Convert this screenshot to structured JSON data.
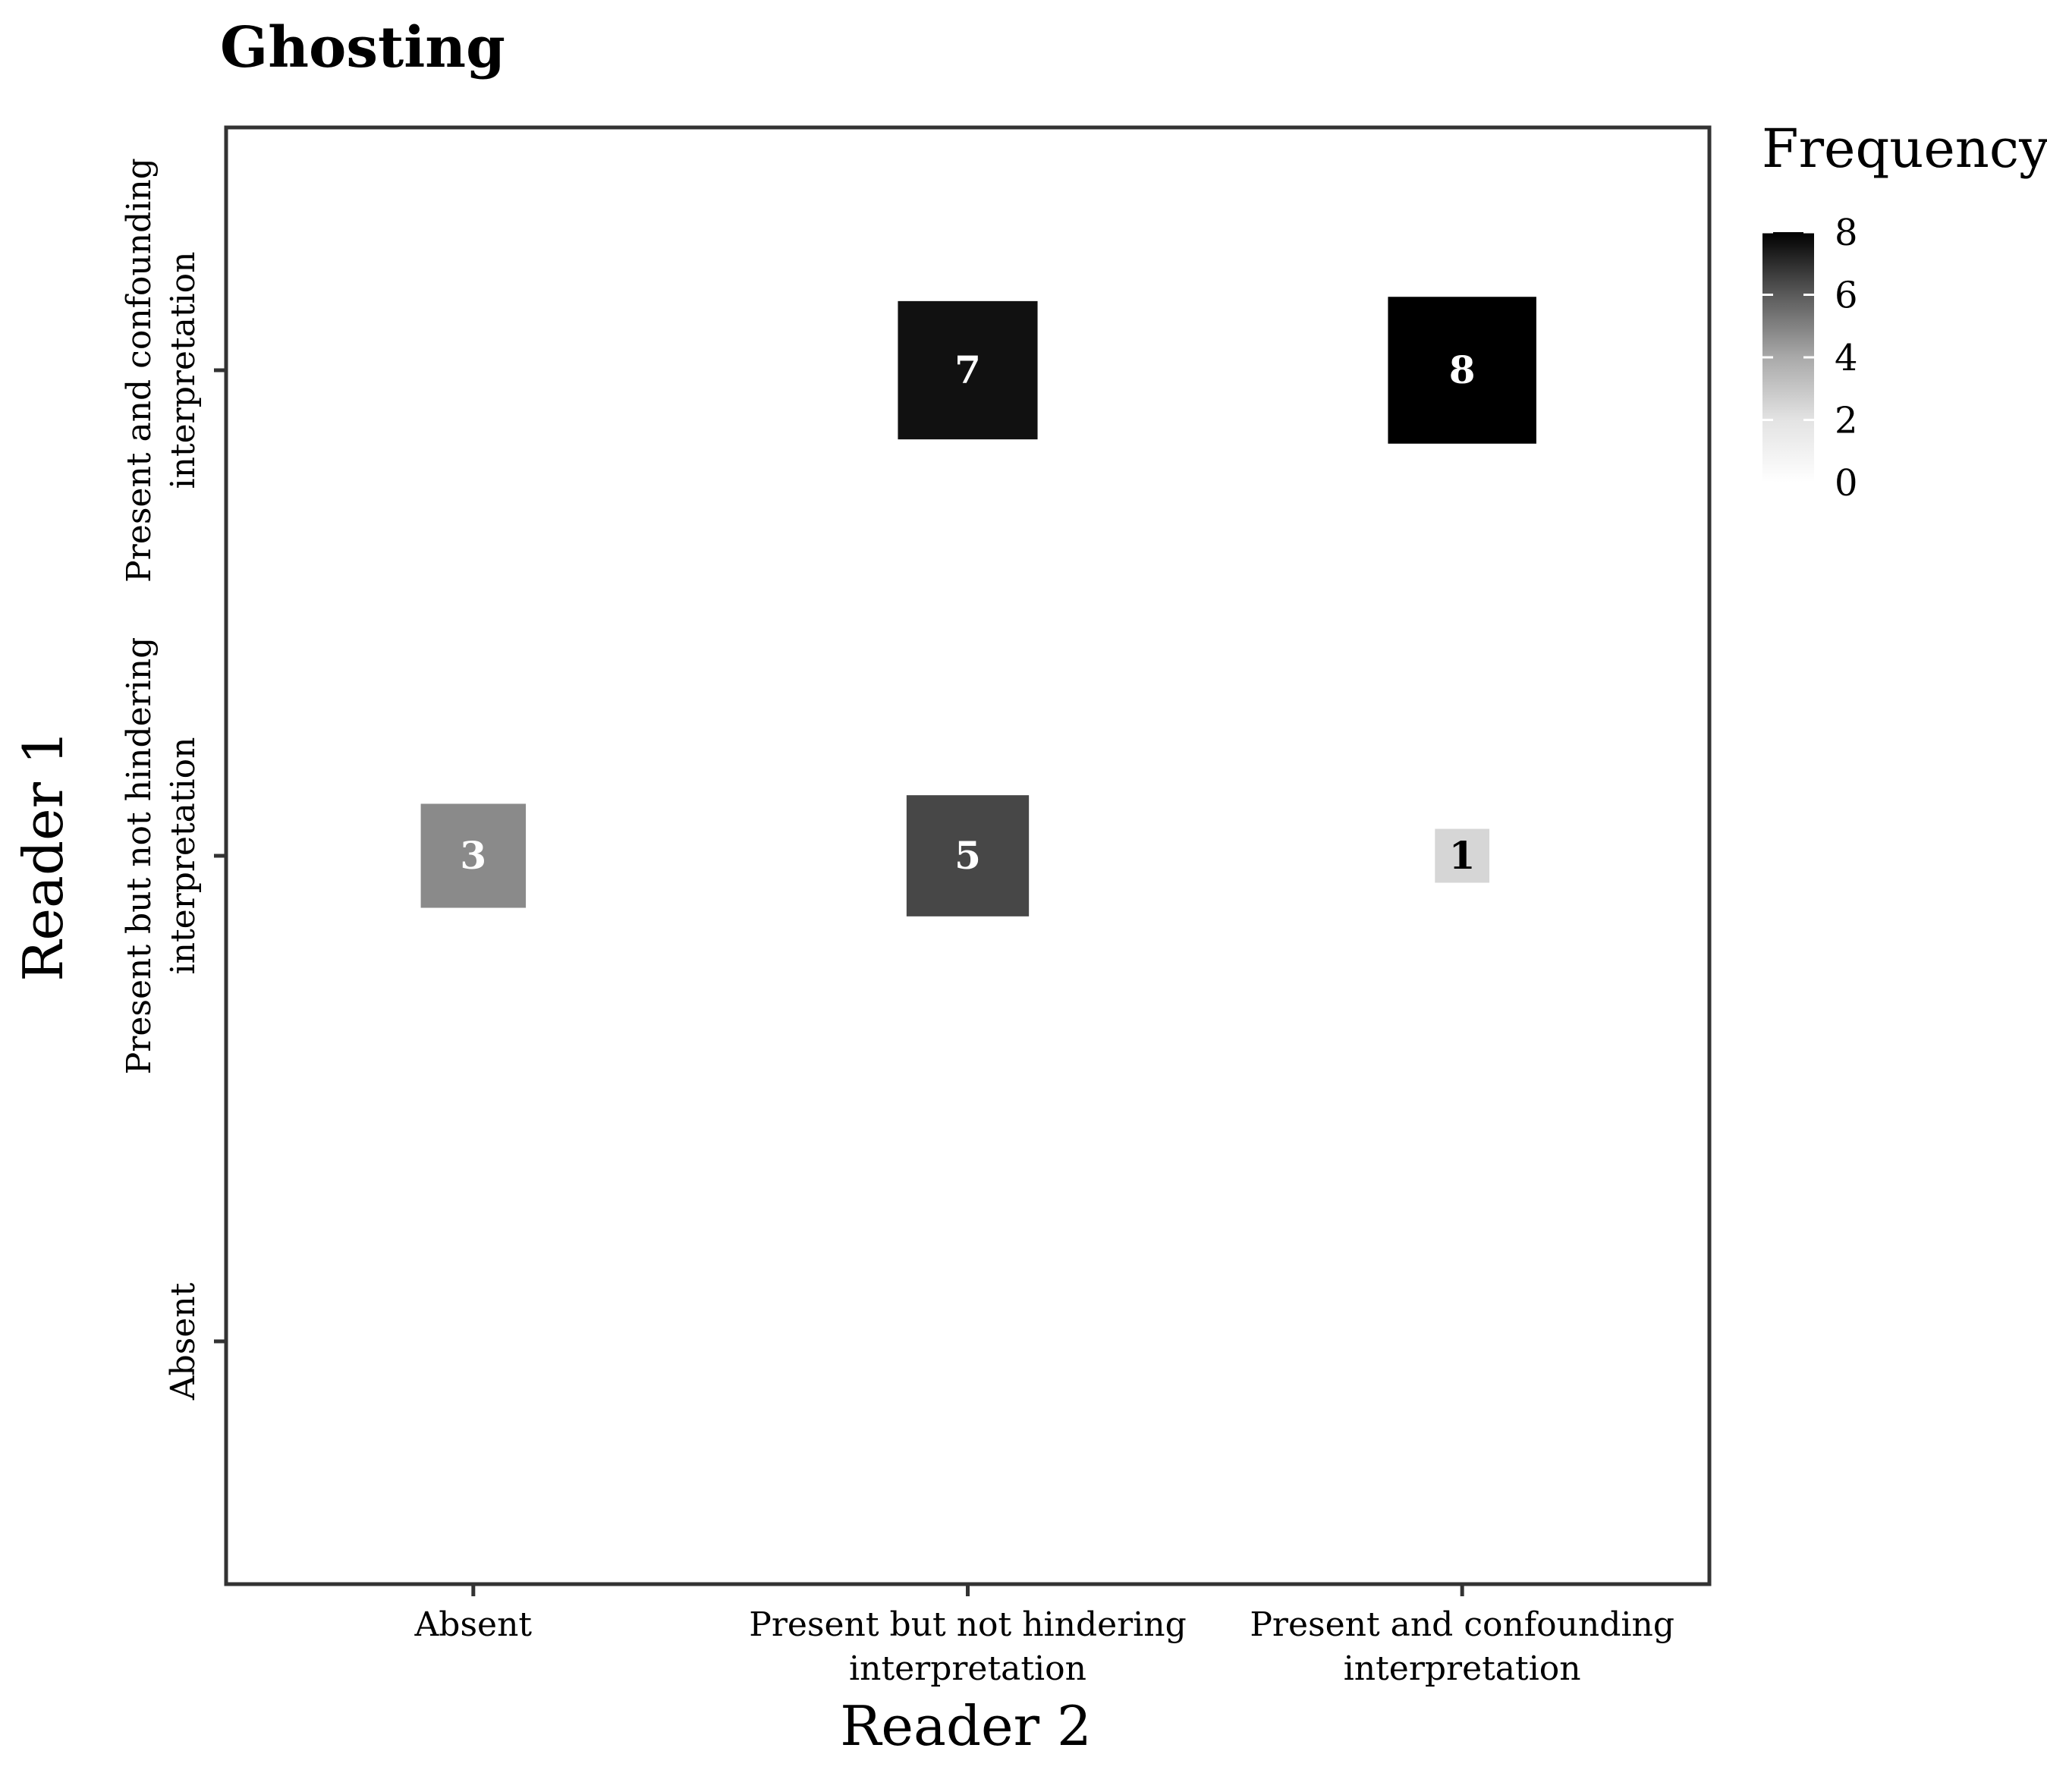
{
  "chart_data": {
    "type": "heatmap",
    "title": "Ghosting",
    "xlabel": "Reader 2",
    "ylabel": "Reader 1",
    "x_categories": [
      [
        "Absent"
      ],
      [
        "Present but not hindering",
        "interpretation"
      ],
      [
        "Present and confounding",
        "interpretation"
      ]
    ],
    "y_categories": [
      [
        "Absent"
      ],
      [
        "Present but not hindering",
        "interpretation"
      ],
      [
        "Present and confounding",
        "interpretation"
      ]
    ],
    "cells": [
      {
        "x": 0,
        "y": 1,
        "value": 3
      },
      {
        "x": 1,
        "y": 1,
        "value": 5
      },
      {
        "x": 2,
        "y": 1,
        "value": 1
      },
      {
        "x": 1,
        "y": 2,
        "value": 7
      },
      {
        "x": 2,
        "y": 2,
        "value": 8
      }
    ],
    "legend": {
      "title": "Frequency",
      "min": 0,
      "max": 8,
      "ticks": [
        0,
        2,
        4,
        6,
        8
      ],
      "low_color": "#ffffff",
      "high_color": "#000000",
      "position": "right"
    },
    "grid": false
  }
}
